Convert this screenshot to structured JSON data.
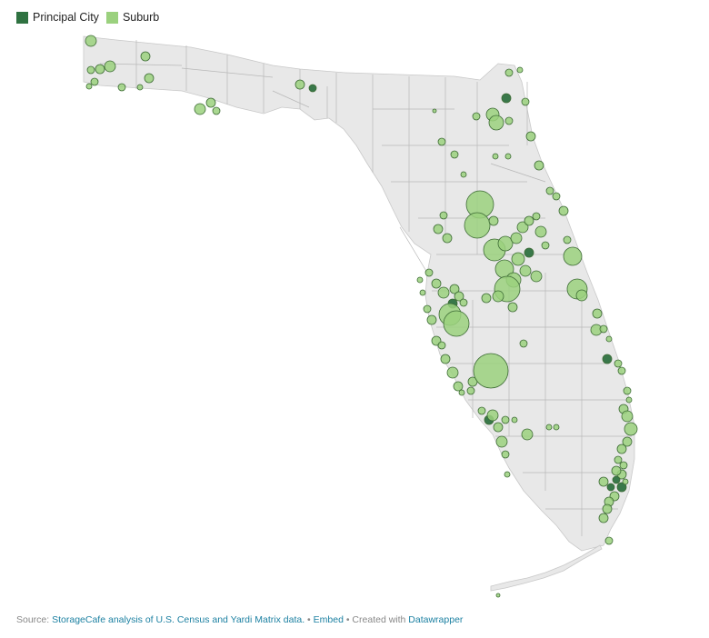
{
  "legend": {
    "items": [
      {
        "label": "Principal City",
        "color": "#2f7241"
      },
      {
        "label": "Suburb",
        "color": "#9bd17e"
      }
    ]
  },
  "colors": {
    "land": "#e8e8e8",
    "county_line": "#b8b8b8",
    "principal_fill": "#2f7241",
    "suburb_fill": "#9bd17e",
    "stroke": "#3d6b35"
  },
  "footer": {
    "source_prefix": "Source: ",
    "source_link": "StorageCafe analysis of U.S. Census and Yardi Matrix data.",
    "sep1": " • ",
    "embed": "Embed",
    "sep2": "  • Created with ",
    "datawrapper": "Datawrapper"
  }
}
